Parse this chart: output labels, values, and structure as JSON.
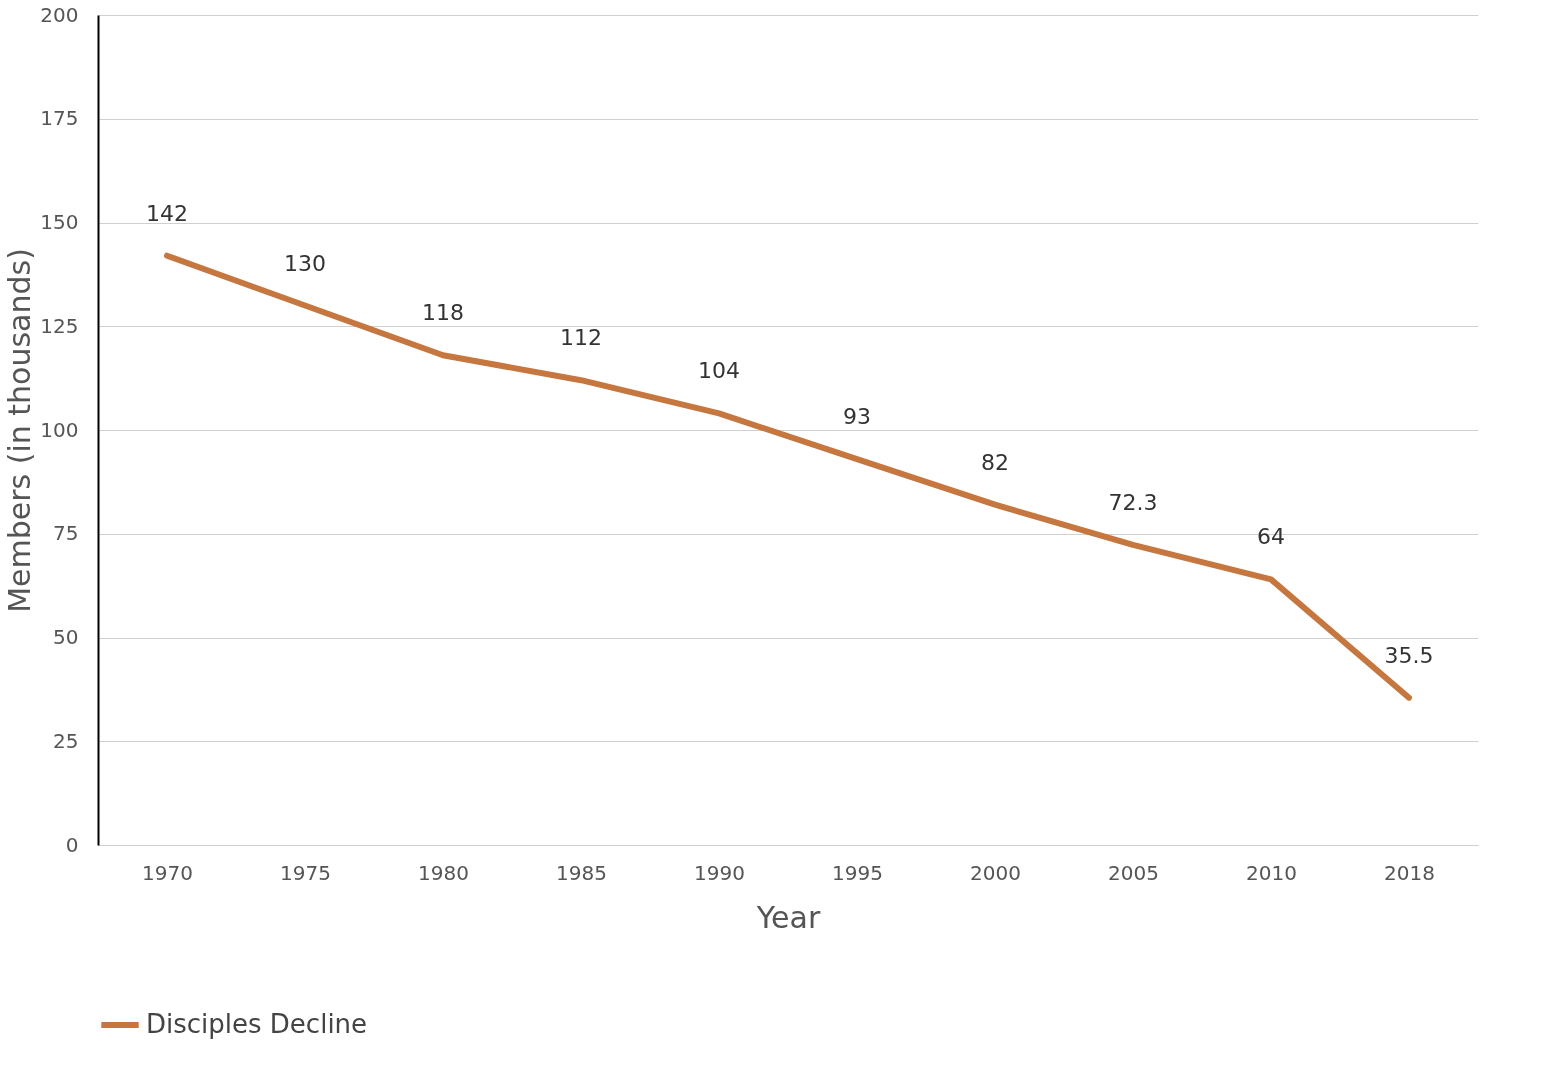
{
  "chart_data": {
    "type": "line",
    "xlabel": "Year",
    "ylabel": "Members (in thousands)",
    "categories": [
      "1970",
      "1975",
      "1980",
      "1985",
      "1990",
      "1995",
      "2000",
      "2005",
      "2010",
      "2018"
    ],
    "series": [
      {
        "name": "Disciples Decline",
        "color": "#c5773f",
        "values": [
          142,
          130,
          118,
          112,
          104,
          93,
          82,
          72.3,
          64,
          35.5
        ]
      }
    ],
    "ylim": [
      0,
      200
    ],
    "yticks": [
      0,
      25,
      50,
      75,
      100,
      125,
      150,
      175,
      200
    ],
    "grid": "y",
    "legend": "bottom",
    "data_labels": true,
    "marker": "none",
    "line_style": "solid"
  }
}
